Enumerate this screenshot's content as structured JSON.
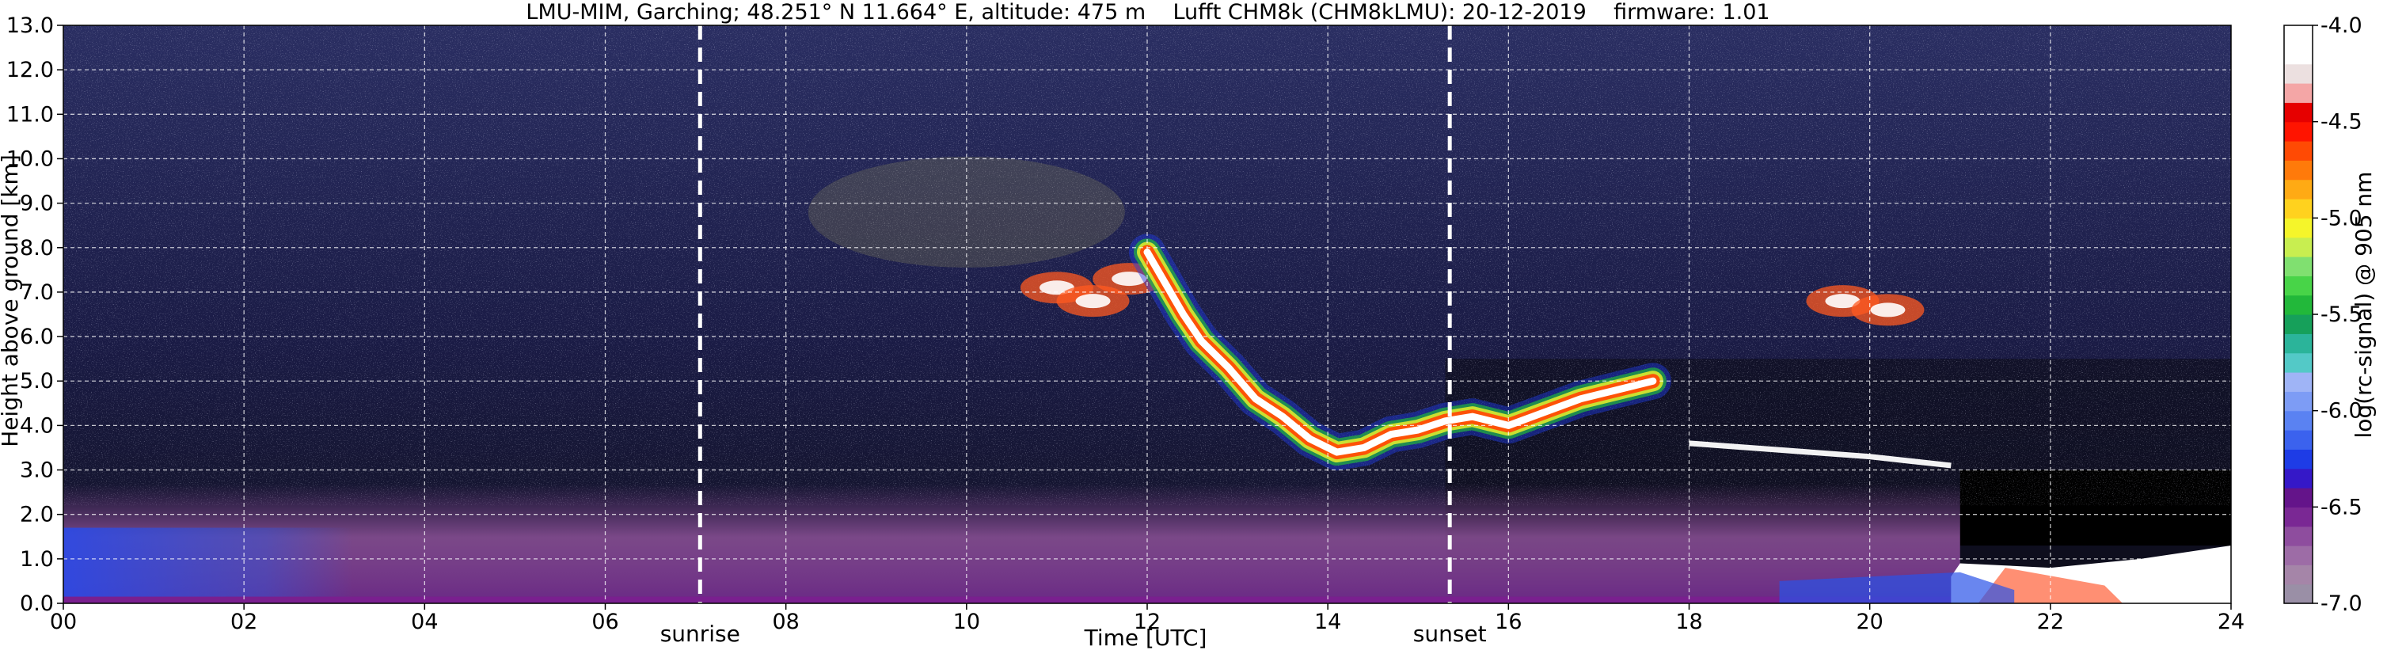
{
  "chart_data": {
    "type": "heatmap",
    "title": "LMU-MIM, Garching; 48.251° N 11.664° E, altitude: 475 m    Lufft CHM8k (CHM8kLMU): 20-12-2019    firmware: 1.01",
    "xlabel": "Time [UTC]",
    "ylabel": "Height above ground [km]",
    "colorbar_label": "log(rc-signal) @ 905 nm",
    "xlim": [
      0,
      24
    ],
    "ylim": [
      0,
      13
    ],
    "x_ticks": [
      "00",
      "02",
      "04",
      "06",
      "08",
      "10",
      "12",
      "14",
      "16",
      "18",
      "20",
      "22",
      "24"
    ],
    "y_ticks": [
      "0.0",
      "1.0",
      "2.0",
      "3.0",
      "4.0",
      "5.0",
      "6.0",
      "7.0",
      "8.0",
      "9.0",
      "10.0",
      "11.0",
      "12.0",
      "13.0"
    ],
    "grid": true,
    "colorbar": {
      "range": [
        -7.0,
        -4.0
      ],
      "ticks": [
        "-7.0",
        "-6.5",
        "-6.0",
        "-5.5",
        "-5.0",
        "-4.5",
        "-4.0"
      ],
      "colors": [
        "#9a8fa6",
        "#a585a8",
        "#9d6ca6",
        "#8e4d9e",
        "#7a2894",
        "#64148a",
        "#3518c8",
        "#1e3ce6",
        "#3b62ee",
        "#5a82f2",
        "#7d9cf5",
        "#9fb4f6",
        "#53c9c7",
        "#2bb49a",
        "#16a05a",
        "#22b83a",
        "#48d448",
        "#80e070",
        "#c8ee50",
        "#f5f52a",
        "#ffd21e",
        "#ffaa14",
        "#ff7a0a",
        "#ff4a04",
        "#ff1400",
        "#e60000",
        "#f4a6a6",
        "#ece0e0",
        "#ffffff",
        "#ffffff"
      ]
    },
    "annotations": [
      {
        "label": "sunrise",
        "x": 7.05
      },
      {
        "label": "sunset",
        "x": 15.35
      }
    ],
    "features": {
      "cloud_layer_core": [
        {
          "x": 12.0,
          "y": 7.9
        },
        {
          "x": 12.2,
          "y": 7.2
        },
        {
          "x": 12.4,
          "y": 6.5
        },
        {
          "x": 12.6,
          "y": 5.9
        },
        {
          "x": 12.9,
          "y": 5.3
        },
        {
          "x": 13.2,
          "y": 4.6
        },
        {
          "x": 13.5,
          "y": 4.2
        },
        {
          "x": 13.8,
          "y": 3.7
        },
        {
          "x": 14.1,
          "y": 3.4
        },
        {
          "x": 14.4,
          "y": 3.5
        },
        {
          "x": 14.7,
          "y": 3.8
        },
        {
          "x": 15.0,
          "y": 3.9
        },
        {
          "x": 15.3,
          "y": 4.1
        },
        {
          "x": 15.6,
          "y": 4.2
        },
        {
          "x": 16.0,
          "y": 4.0
        },
        {
          "x": 16.4,
          "y": 4.3
        },
        {
          "x": 16.8,
          "y": 4.6
        },
        {
          "x": 17.2,
          "y": 4.8
        },
        {
          "x": 17.6,
          "y": 5.0
        }
      ],
      "thin_layer": [
        {
          "x": 18.0,
          "y": 3.6
        },
        {
          "x": 19.0,
          "y": 3.45
        },
        {
          "x": 20.0,
          "y": 3.3
        },
        {
          "x": 20.9,
          "y": 3.1
        }
      ],
      "upper_cirrus": [
        {
          "x": 11.0,
          "y": 7.1
        },
        {
          "x": 11.4,
          "y": 6.8
        },
        {
          "x": 11.8,
          "y": 7.3
        },
        {
          "x": 19.7,
          "y": 6.8
        },
        {
          "x": 20.2,
          "y": 6.6
        }
      ],
      "boundary_layer_top_km": 1.0,
      "strong_near_surface": [
        {
          "x": 21.0,
          "y": 0.9
        },
        {
          "x": 22.0,
          "y": 0.8
        },
        {
          "x": 23.0,
          "y": 1.0
        },
        {
          "x": 24.0,
          "y": 1.3
        }
      ]
    }
  }
}
